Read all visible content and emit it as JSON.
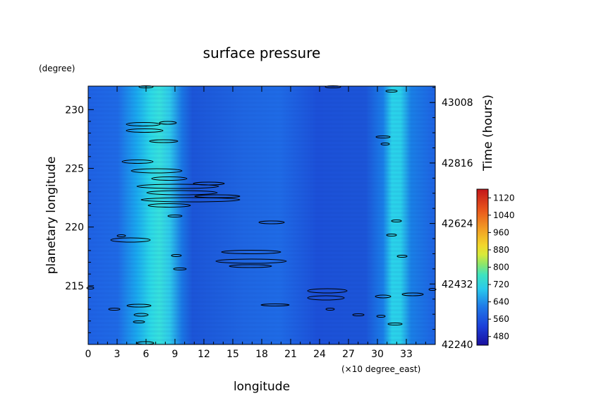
{
  "chart_data": {
    "type": "heatmap",
    "title": "surface pressure",
    "xlabel": "longitude",
    "x_unit": "(×10 degree_east)",
    "xlim": [
      0,
      36
    ],
    "x_ticks": [
      "0",
      "3",
      "6",
      "9",
      "12",
      "15",
      "18",
      "21",
      "24",
      "27",
      "30",
      "33"
    ],
    "ylabel": "planetary longitude",
    "y_unit": "(degree)",
    "ylim": [
      210,
      232
    ],
    "y_ticks": [
      "215",
      "220",
      "225",
      "230"
    ],
    "y2label": "Time (hours)",
    "y2lim": [
      42240,
      43060
    ],
    "y2_ticks": [
      "42240",
      "42432",
      "42624",
      "42816",
      "43008"
    ],
    "colorbar": {
      "range": [
        440,
        1160
      ],
      "ticks": [
        "480",
        "560",
        "640",
        "720",
        "800",
        "880",
        "960",
        "1040",
        "1120"
      ]
    },
    "field_description": {
      "background_level": 530,
      "bands": [
        {
          "center_x": 7.0,
          "half_width_x": 2.2,
          "peak": 740
        },
        {
          "center_x": 31.3,
          "half_width_x": 1.8,
          "peak": 700
        }
      ]
    }
  }
}
